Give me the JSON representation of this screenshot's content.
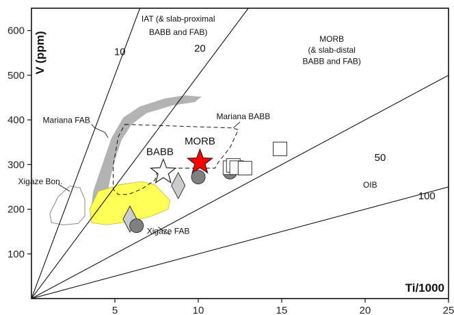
{
  "chart_data": {
    "type": "scatter",
    "title": "",
    "xlabel": "Ti/1000",
    "ylabel": "V (ppm)",
    "xlim": [
      0,
      25
    ],
    "ylim": [
      0,
      650
    ],
    "x_ticks": [
      5,
      10,
      15,
      20,
      25
    ],
    "y_ticks": [
      100,
      200,
      300,
      400,
      500,
      600
    ],
    "grid": false,
    "ratio_lines": [
      {
        "ratio": 10,
        "label": "10"
      },
      {
        "ratio": 20,
        "label": "20"
      },
      {
        "ratio": 50,
        "label": "50"
      },
      {
        "ratio": 100,
        "label": "100"
      }
    ],
    "field_labels": [
      {
        "text": "IAT (& slab-proximal",
        "x": 8.8,
        "y": 620
      },
      {
        "text": "BABB and FAB)",
        "x": 8.8,
        "y": 590
      },
      {
        "text": "MORB",
        "x": 18.0,
        "y": 575
      },
      {
        "text": "(& slab-distal",
        "x": 18.0,
        "y": 550
      },
      {
        "text": "BABB and FAB)",
        "x": 18.0,
        "y": 525
      },
      {
        "text": "OIB",
        "x": 20.3,
        "y": 248
      },
      {
        "text": "Mariana FAB",
        "x": 2.1,
        "y": 393
      },
      {
        "text": "Mariana BABB",
        "x": 12.7,
        "y": 402
      },
      {
        "text": "Xigaze Bon.",
        "x": -0.8,
        "y": 256
      },
      {
        "text": "Xigaze FAB",
        "x": 8.2,
        "y": 145
      },
      {
        "text": "BABB",
        "x": 7.7,
        "y": 321
      },
      {
        "text": "MORB",
        "x": 10.1,
        "y": 345
      }
    ],
    "series": [
      {
        "marker": "star",
        "color": "#ff0000",
        "points": [
          [
            10.1,
            305
          ]
        ]
      },
      {
        "marker": "star",
        "color": "#ffffff",
        "points": [
          [
            7.9,
            283
          ]
        ]
      },
      {
        "marker": "diamond",
        "color": "#cccccc",
        "points": [
          [
            8.8,
            253
          ],
          [
            5.9,
            178
          ]
        ]
      },
      {
        "marker": "circle",
        "color": "#808080",
        "points": [
          [
            10.0,
            272
          ],
          [
            11.9,
            283
          ],
          [
            6.3,
            163
          ]
        ]
      },
      {
        "marker": "square",
        "color": "#ffffff",
        "points": [
          [
            11.9,
            293
          ],
          [
            12.1,
            298
          ],
          [
            12.3,
            293
          ],
          [
            12.8,
            292
          ],
          [
            14.9,
            335
          ]
        ]
      }
    ],
    "fields": [
      {
        "name": "Mariana FAB",
        "style": "filled",
        "color": "#b3b3b3"
      },
      {
        "name": "Xigaze FAB",
        "style": "filled",
        "color": "#ffff55"
      },
      {
        "name": "Xigaze Bon.",
        "style": "outline",
        "color": "#ffffff"
      },
      {
        "name": "Mariana BABB",
        "style": "dashed",
        "color": "#000000"
      }
    ]
  }
}
